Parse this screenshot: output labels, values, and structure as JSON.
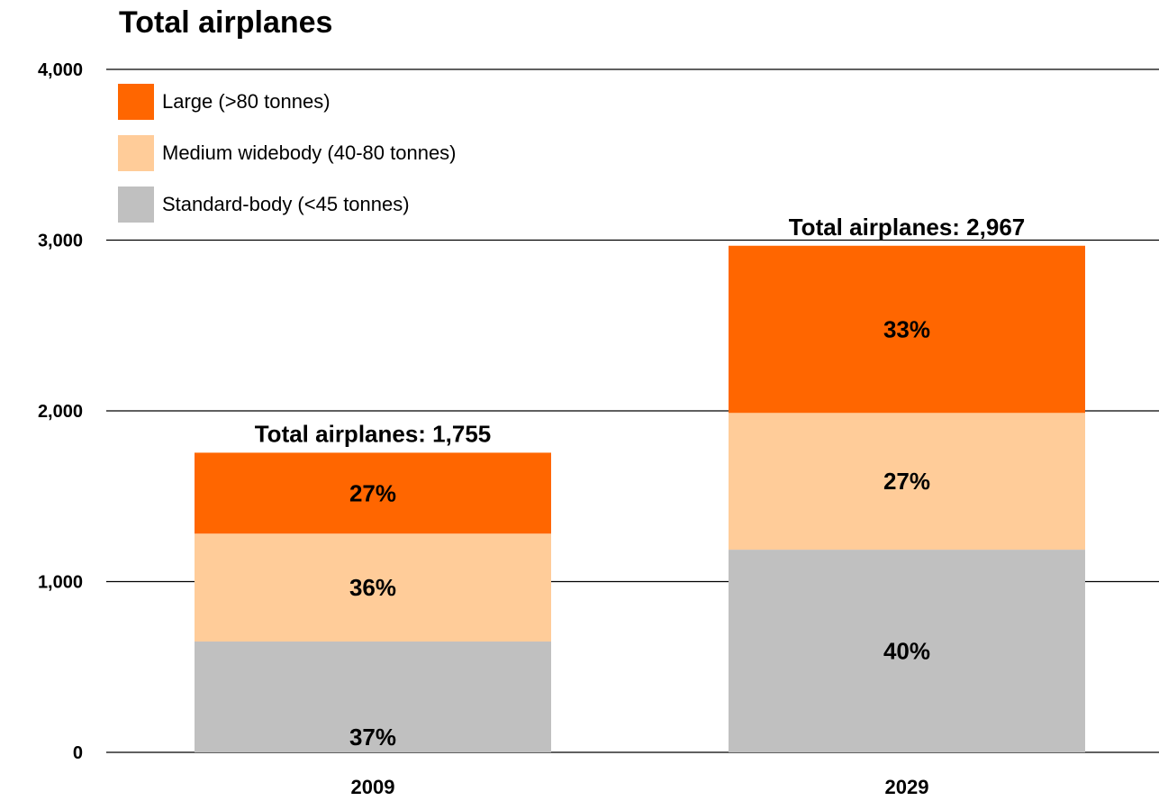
{
  "chart_data": {
    "type": "bar",
    "stacked": true,
    "title": "Total airplanes",
    "categories": [
      "2009",
      "2029"
    ],
    "ylim": [
      0,
      4000
    ],
    "yticks": [
      "0",
      "1,000",
      "2,000",
      "3,000",
      "4,000"
    ],
    "ytick_values": [
      0,
      1000,
      2000,
      3000,
      4000
    ],
    "grid": true,
    "legend_position": "top-left",
    "series": [
      {
        "name": "Standard-body (<45 tonnes)",
        "color": "#c0c0c0",
        "values": [
          649,
          1187
        ],
        "labels": [
          "37%",
          "40%"
        ]
      },
      {
        "name": "Medium widebody (40-80 tonnes)",
        "color": "#ffcc99",
        "values": [
          632,
          801
        ],
        "labels": [
          "36%",
          "27%"
        ]
      },
      {
        "name": "Large (>80 tonnes)",
        "color": "#ff6600",
        "values": [
          474,
          979
        ],
        "labels": [
          "27%",
          "33%"
        ]
      }
    ],
    "totals": [
      {
        "value": 1755,
        "label": "Total airplanes: 1,755"
      },
      {
        "value": 2967,
        "label": "Total airplanes: 2,967"
      }
    ]
  }
}
